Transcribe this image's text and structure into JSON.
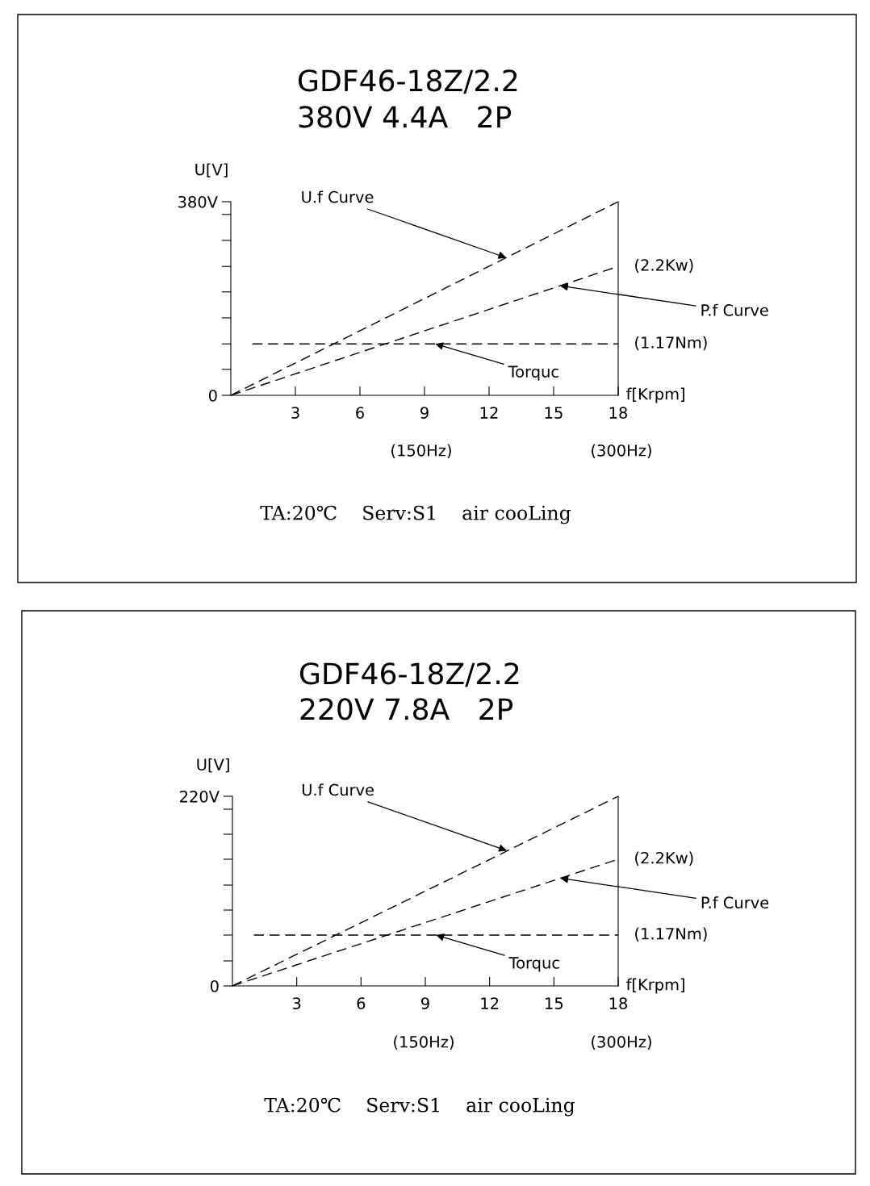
{
  "chart_data": [
    {
      "type": "line",
      "title": "GDF46-18Z/2.2",
      "subtitle": "380V 4.4A   2P",
      "xlabel": "f[Krpm]",
      "ylabel": "U[V]",
      "series": [
        {
          "color": "#000000",
          "x": [
            0,
            18
          ],
          "values": [
            0,
            380
          ]
        },
        {
          "color": "#000000",
          "x": [
            0,
            18
          ],
          "values": [
            0,
            253
          ]
        },
        {
          "color": "#000000",
          "x": [
            1,
            18
          ],
          "values": [
            101,
            101
          ]
        }
      ],
      "xlim": [
        0,
        18
      ],
      "ylim": [
        0,
        380
      ],
      "xticks": [
        3,
        6,
        9,
        12,
        15,
        18
      ],
      "yticks": [
        {
          "value": 0,
          "label": "0"
        },
        {
          "value": 51,
          "label": null
        },
        {
          "value": 101,
          "label": null
        },
        {
          "value": 152,
          "label": null
        },
        {
          "value": 203,
          "label": null
        },
        {
          "value": 253,
          "label": null
        },
        {
          "value": 304,
          "label": null
        },
        {
          "value": 355,
          "label": null
        },
        {
          "value": 380,
          "label": "380V"
        }
      ],
      "annotations": [
        {
          "text": "U.f Curve",
          "x": 12.8,
          "y": 270
        },
        {
          "text": "P.f Curve",
          "x": 15.3,
          "y": 215
        },
        {
          "text": "Torquc",
          "x": 9.5,
          "y": 101
        },
        {
          "text": "(2.2Kw)",
          "x": 18,
          "y": 253
        },
        {
          "text": "(1.17Nm)",
          "x": 18,
          "y": 101
        },
        "(150Hz)",
        "(300Hz)",
        "TA:20℃    Serv:S1    air cooLing"
      ],
      "grid": false,
      "legend": false,
      "marker": "none",
      "line_style": "dashed"
    },
    {
      "type": "line",
      "title": "GDF46-18Z/2.2",
      "subtitle": "220V 7.8A   2P",
      "xlabel": "f[Krpm]",
      "ylabel": "U[V]",
      "series": [
        {
          "color": "#000000",
          "x": [
            0,
            18
          ],
          "values": [
            0,
            220
          ]
        },
        {
          "color": "#000000",
          "x": [
            0,
            18
          ],
          "values": [
            0,
            147
          ]
        },
        {
          "color": "#000000",
          "x": [
            1,
            18
          ],
          "values": [
            59,
            59
          ]
        }
      ],
      "xlim": [
        0,
        18
      ],
      "ylim": [
        0,
        220
      ],
      "xticks": [
        3,
        6,
        9,
        12,
        15,
        18
      ],
      "yticks": [
        {
          "value": 0,
          "label": "0"
        },
        {
          "value": 29,
          "label": null
        },
        {
          "value": 59,
          "label": null
        },
        {
          "value": 88,
          "label": null
        },
        {
          "value": 117,
          "label": null
        },
        {
          "value": 147,
          "label": null
        },
        {
          "value": 176,
          "label": null
        },
        {
          "value": 205,
          "label": null
        },
        {
          "value": 220,
          "label": "220V"
        }
      ],
      "annotations": [
        {
          "text": "U.f Curve",
          "x": 12.8,
          "y": 157
        },
        {
          "text": "P.f Curve",
          "x": 15.3,
          "y": 125
        },
        {
          "text": "Torquc",
          "x": 9.5,
          "y": 59
        },
        {
          "text": "(2.2Kw)",
          "x": 18,
          "y": 147
        },
        {
          "text": "(1.17Nm)",
          "x": 18,
          "y": 59
        },
        "(150Hz)",
        "(300Hz)",
        "TA:20℃    Serv:S1    air cooLing"
      ],
      "grid": false,
      "legend": false,
      "marker": "none",
      "line_style": "dashed"
    }
  ]
}
